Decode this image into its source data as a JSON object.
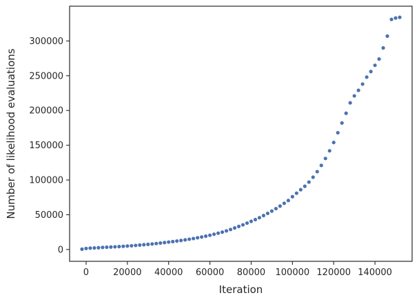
{
  "chart_data": {
    "type": "scatter",
    "title": "",
    "xlabel": "Iteration",
    "ylabel": "Number of likelihood evaluations",
    "xlim": [
      -8000,
      158000
    ],
    "ylim": [
      -17000,
      350000
    ],
    "xticks": [
      0,
      20000,
      40000,
      60000,
      80000,
      100000,
      120000,
      140000
    ],
    "yticks": [
      0,
      50000,
      100000,
      150000,
      200000,
      250000,
      300000
    ],
    "grid": false,
    "marker_color": "#4c72b0",
    "series": [
      {
        "x": [
          -2000,
          0,
          2000,
          4000,
          6000,
          8000,
          10000,
          12000,
          14000,
          16000,
          18000,
          20000,
          22000,
          24000,
          26000,
          28000,
          30000,
          32000,
          34000,
          36000,
          38000,
          40000,
          42000,
          44000,
          46000,
          48000,
          50000,
          52000,
          54000,
          56000,
          58000,
          60000,
          62000,
          64000,
          66000,
          68000,
          70000,
          72000,
          74000,
          76000,
          78000,
          80000,
          82000,
          84000,
          86000,
          88000,
          90000,
          92000,
          94000,
          96000,
          98000,
          100000,
          102000,
          104000,
          106000,
          108000,
          110000,
          112000,
          114000,
          116000,
          118000,
          120000,
          122000,
          124000,
          126000,
          128000,
          130000,
          132000,
          134000,
          136000,
          138000,
          140000,
          142000,
          144000,
          146000,
          148000,
          150000,
          152000
        ],
        "y": [
          500,
          1500,
          2000,
          2300,
          2600,
          3000,
          3300,
          3600,
          3900,
          4200,
          4600,
          5000,
          5400,
          5900,
          6400,
          6900,
          7400,
          8000,
          8600,
          9300,
          10000,
          10700,
          11400,
          12200,
          13000,
          13900,
          14800,
          15800,
          16900,
          18000,
          19200,
          20500,
          22000,
          23500,
          25000,
          26800,
          28800,
          31000,
          33200,
          35500,
          38000,
          40500,
          43000,
          45800,
          48800,
          52000,
          55300,
          58800,
          62500,
          66500,
          70500,
          76000,
          81000,
          86000,
          91000,
          97000,
          104000,
          112000,
          121000,
          131000,
          142000,
          154000,
          168000,
          182000,
          196000,
          211000,
          221000,
          229000,
          238000,
          248000,
          256000,
          265000,
          274000,
          290000,
          307000,
          331000,
          333000,
          334000
        ]
      }
    ]
  }
}
